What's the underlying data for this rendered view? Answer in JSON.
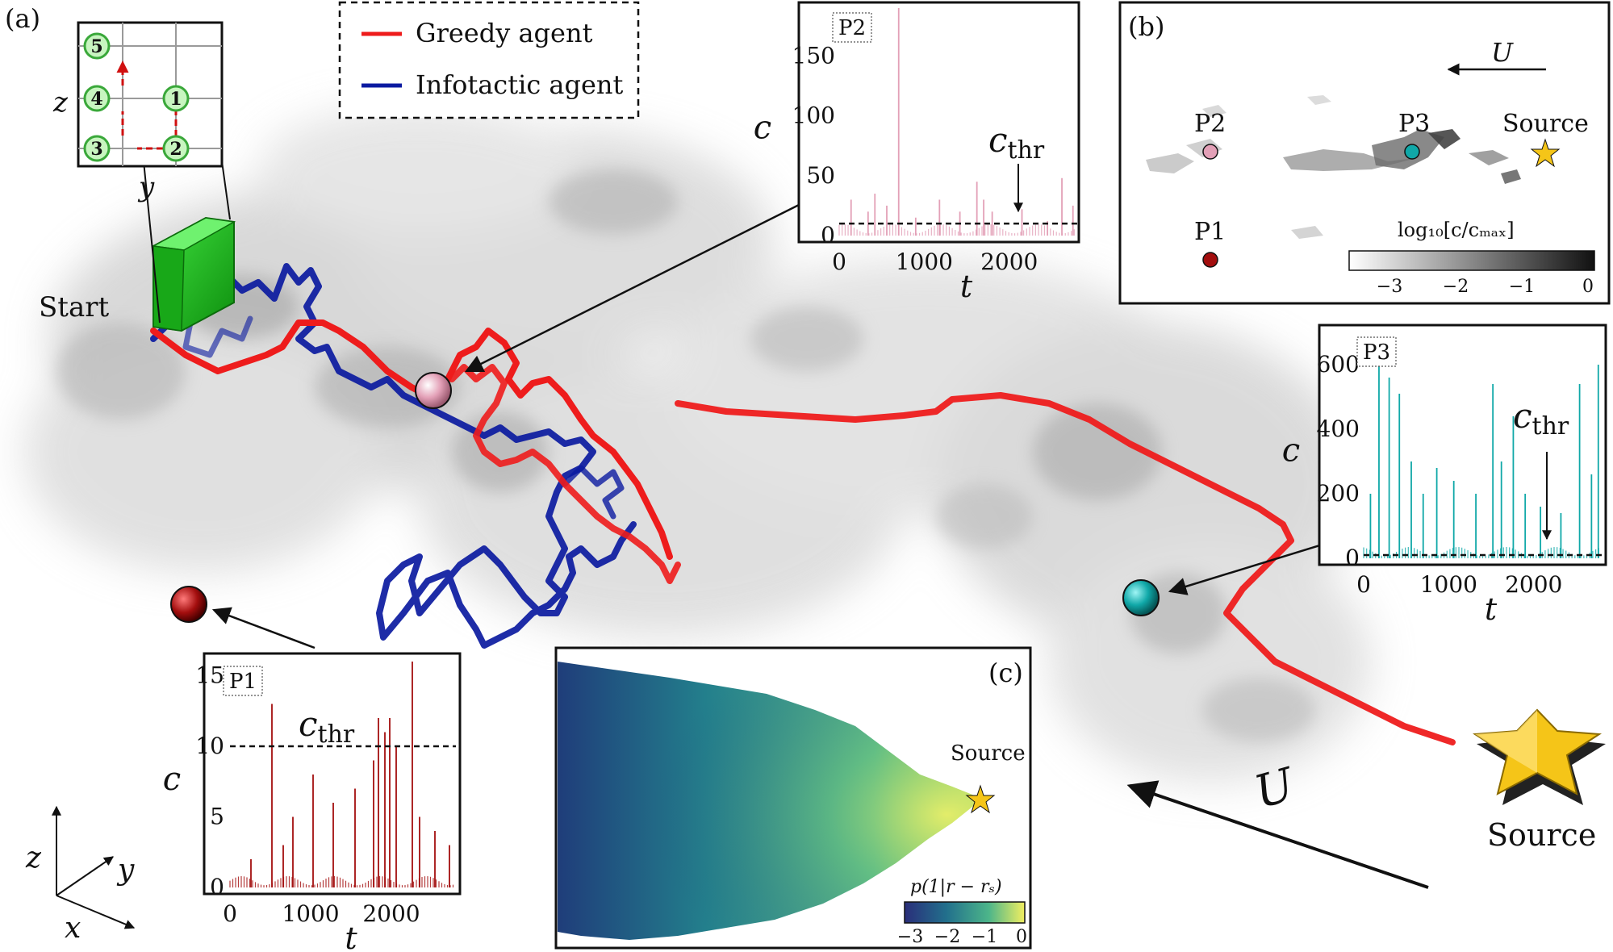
{
  "panel_labels": {
    "a": "(a)",
    "b": "(b)",
    "c": "(c)"
  },
  "legend": {
    "greedy": {
      "label": "Greedy agent",
      "color": "#ee1c1c"
    },
    "infotactic": {
      "label": "Infotactic agent",
      "color": "#0b1aa0"
    }
  },
  "start_label": "Start",
  "source_label": "Source",
  "wind_label": "U",
  "grid_inset": {
    "zlabel": "z",
    "ylabel": "y",
    "nodes": [
      {
        "label": "5",
        "col": 0,
        "row": 0
      },
      {
        "label": "4",
        "col": 0,
        "row": 1
      },
      {
        "label": "1",
        "col": 1,
        "row": 1
      },
      {
        "label": "3",
        "col": 0,
        "row": 2
      },
      {
        "label": "2",
        "col": 1,
        "row": 2
      }
    ]
  },
  "axes3d": {
    "z": "z",
    "y": "y",
    "x": "x"
  },
  "probes": {
    "P1": {
      "name": "P1",
      "color": "#b01212"
    },
    "P2": {
      "name": "P2",
      "color": "#e7a7bf"
    },
    "P3": {
      "name": "P3",
      "color": "#16a5a5"
    }
  },
  "colors": {
    "p1": "#a30e0e",
    "p2": "#e3a0b7",
    "p3": "#10a8a8",
    "star": "#f5c518"
  },
  "chart_data": [
    {
      "id": "P1",
      "type": "bar",
      "title": "P1",
      "xlabel": "t",
      "ylabel": "c",
      "xlim": [
        0,
        2800
      ],
      "ylim": [
        0,
        16
      ],
      "xticks": [
        "0",
        "1000",
        "2000"
      ],
      "yticks": [
        "0",
        "5",
        "10",
        "15"
      ],
      "threshold": {
        "label": "c_thr",
        "value": 10
      },
      "spikes": [
        [
          260,
          2
        ],
        [
          520,
          13
        ],
        [
          660,
          3
        ],
        [
          780,
          5
        ],
        [
          1030,
          8
        ],
        [
          1280,
          6
        ],
        [
          1550,
          7
        ],
        [
          1780,
          9
        ],
        [
          1840,
          12
        ],
        [
          1920,
          11
        ],
        [
          1980,
          12
        ],
        [
          2060,
          10
        ],
        [
          2260,
          16
        ],
        [
          2350,
          5
        ],
        [
          2540,
          4
        ],
        [
          2720,
          3
        ]
      ]
    },
    {
      "id": "P2",
      "type": "bar",
      "title": "P2",
      "xlabel": "t",
      "ylabel": "c",
      "xlim": [
        0,
        2800
      ],
      "ylim": [
        0,
        190
      ],
      "xticks": [
        "0",
        "1000",
        "2000"
      ],
      "yticks": [
        "0",
        "50",
        "100",
        "150"
      ],
      "threshold": {
        "label": "c_thr",
        "value": 10
      },
      "spikes": [
        [
          140,
          30
        ],
        [
          340,
          20
        ],
        [
          420,
          35
        ],
        [
          560,
          25
        ],
        [
          700,
          190
        ],
        [
          900,
          15
        ],
        [
          1180,
          30
        ],
        [
          1420,
          20
        ],
        [
          1620,
          45
        ],
        [
          1700,
          30
        ],
        [
          1800,
          20
        ],
        [
          2150,
          22
        ],
        [
          2450,
          12
        ],
        [
          2620,
          48
        ],
        [
          2750,
          25
        ]
      ]
    },
    {
      "id": "P3",
      "type": "bar",
      "title": "P3",
      "xlabel": "t",
      "ylabel": "c",
      "xlim": [
        0,
        2800
      ],
      "ylim": [
        0,
        700
      ],
      "xticks": [
        "0",
        "1000",
        "2000"
      ],
      "yticks": [
        "0",
        "200",
        "400",
        "600"
      ],
      "threshold": {
        "label": "c_thr",
        "value": 10
      },
      "spikes": [
        [
          80,
          200
        ],
        [
          180,
          680
        ],
        [
          300,
          560
        ],
        [
          420,
          510
        ],
        [
          560,
          300
        ],
        [
          700,
          200
        ],
        [
          860,
          280
        ],
        [
          1060,
          240
        ],
        [
          1320,
          200
        ],
        [
          1520,
          540
        ],
        [
          1620,
          300
        ],
        [
          1760,
          440
        ],
        [
          1900,
          200
        ],
        [
          2080,
          160
        ],
        [
          2320,
          140
        ],
        [
          2540,
          540
        ],
        [
          2680,
          260
        ],
        [
          2760,
          600
        ]
      ]
    }
  ],
  "panel_b": {
    "wind_label": "U",
    "source_label": "Source",
    "p1_label": "P1",
    "p2_label": "P2",
    "p3_label": "P3",
    "colorbar_label": "log₁₀[c/cₘₐₓ]",
    "colorbar_ticks": [
      "−3",
      "−2",
      "−1",
      "0"
    ]
  },
  "panel_c": {
    "source_label": "Source",
    "colorbar_label": "p(1|r − rₛ)",
    "colorbar_ticks": [
      "−3",
      "−2",
      "−1",
      "0"
    ]
  }
}
